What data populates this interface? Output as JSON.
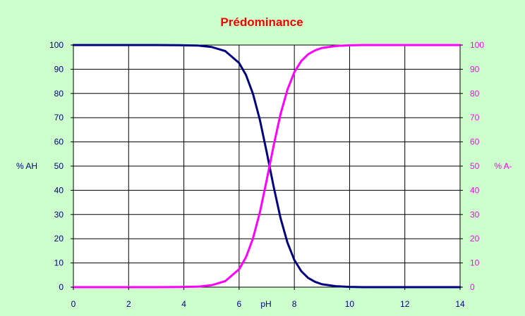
{
  "chart_data": {
    "type": "line",
    "title": "Prédominance",
    "xlabel": "pH",
    "ylabel_left": "% AH",
    "ylabel_right": "% A-",
    "xlim": [
      0,
      14
    ],
    "ylim": [
      0,
      100
    ],
    "x_ticks": [
      "0",
      "2",
      "4",
      "6",
      "8",
      "10",
      "12",
      "14"
    ],
    "y_ticks": [
      "0",
      "10",
      "20",
      "30",
      "40",
      "50",
      "60",
      "70",
      "80",
      "90",
      "100"
    ],
    "grid": true,
    "x": [
      0,
      1,
      2,
      3,
      4,
      4.5,
      5,
      5.5,
      6,
      6.25,
      6.5,
      6.75,
      7,
      7.25,
      7.5,
      7.75,
      8,
      8.25,
      8.5,
      8.75,
      9,
      9.5,
      10,
      10.5,
      11,
      12,
      13,
      14
    ],
    "series": [
      {
        "name": "% AH",
        "axis": "left",
        "color": "#000080",
        "values": [
          100,
          100,
          100,
          100,
          99.9,
          99.8,
          99.2,
          97.5,
          92.6,
          87.6,
          79.9,
          69.2,
          55.7,
          41.5,
          28.5,
          18.4,
          11.2,
          6.6,
          3.8,
          2.2,
          1.2,
          0.4,
          0.1,
          0.0,
          0.0,
          0.0,
          0.0,
          0.0
        ]
      },
      {
        "name": "% A-",
        "axis": "right",
        "color": "#ff00ff",
        "values": [
          0,
          0,
          0,
          0,
          0.1,
          0.2,
          0.8,
          2.5,
          7.4,
          12.4,
          20.1,
          30.8,
          44.3,
          58.5,
          71.5,
          81.6,
          88.8,
          93.4,
          96.2,
          97.8,
          98.8,
          99.6,
          99.9,
          100,
          100,
          100,
          100,
          100
        ]
      }
    ],
    "colors": {
      "background": "#ccffcc",
      "plot_area": "#ffffff",
      "title": "#ff0000",
      "left_axis_text": "#000080",
      "right_axis_text": "#ff00ff",
      "x_axis_text": "#000080",
      "grid": "#000000"
    }
  }
}
